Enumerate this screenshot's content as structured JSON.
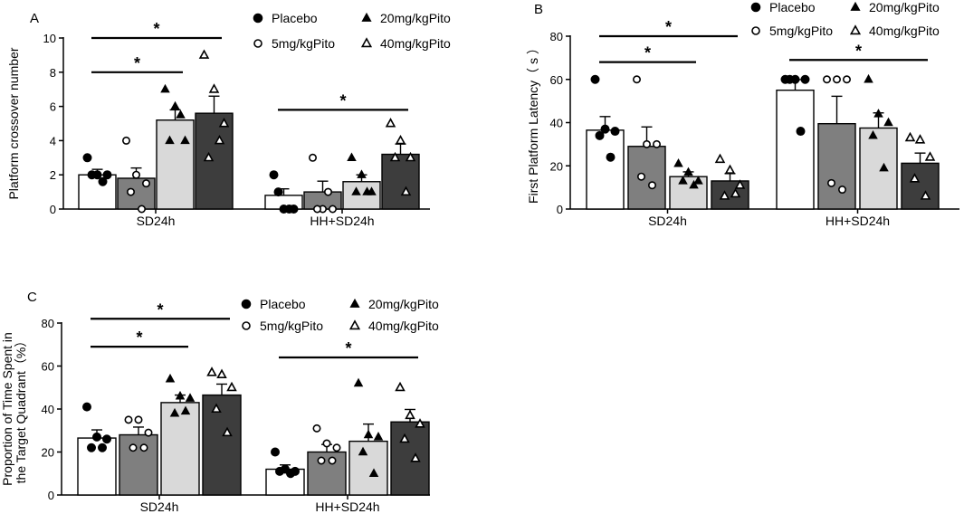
{
  "legend": [
    {
      "label": "Placebo",
      "marker": "filled-circle-icon",
      "fill": "#ffffff"
    },
    {
      "label": "5mg/kgPito",
      "marker": "open-circle-icon",
      "fill": "#7f7f7f"
    },
    {
      "label": "20mg/kgPito",
      "marker": "filled-triangle-icon",
      "fill": "#d9d9d9"
    },
    {
      "label": "40mg/kgPito",
      "marker": "open-triangle-icon",
      "fill": "#3d3d3d"
    }
  ],
  "chart_data": [
    {
      "panel": "A",
      "type": "bar",
      "ylabel": "Platform crossover number",
      "ylim": [
        0,
        10
      ],
      "yticks": [
        0,
        2,
        4,
        6,
        8,
        10
      ],
      "groups": [
        "SD24h",
        "HH+SD24h"
      ],
      "series": [
        {
          "name": "Placebo",
          "values": [
            2.0,
            0.8
          ],
          "sem": [
            0.32,
            0.38
          ],
          "points": [
            [
              3,
              2,
              2,
              2,
              1.6
            ],
            [
              2,
              0,
              0,
              1,
              0
            ]
          ]
        },
        {
          "name": "5mg/kgPito",
          "values": [
            1.8,
            1.0
          ],
          "sem": [
            0.6,
            0.63
          ],
          "points": [
            [
              4,
              2,
              1.5,
              1,
              0
            ],
            [
              3,
              0,
              0,
              0,
              1
            ]
          ]
        },
        {
          "name": "20mg/kgPito",
          "values": [
            5.2,
            1.6
          ],
          "sem": [
            0.6,
            0.4
          ],
          "points": [
            [
              7,
              6,
              4,
              4,
              5.5
            ],
            [
              3,
              2,
              1,
              1,
              1
            ]
          ]
        },
        {
          "name": "40mg/kgPito",
          "values": [
            5.6,
            3.2
          ],
          "sem": [
            1.0,
            0.6
          ],
          "points": [
            [
              9,
              7,
              5,
              3,
              4
            ],
            [
              5,
              4,
              3,
              3,
              1
            ]
          ]
        }
      ],
      "significance": [
        {
          "group": 0,
          "from": 0,
          "to": 2,
          "y": 8.0,
          "label": "*"
        },
        {
          "group": 0,
          "from": 0,
          "to": 3,
          "y": 10.0,
          "label": "*"
        },
        {
          "group": 1,
          "from": 0,
          "to": 3,
          "y": 5.8,
          "label": "*"
        }
      ]
    },
    {
      "panel": "B",
      "type": "bar",
      "ylabel": "First Platform Latency（ s ）",
      "ylim": [
        0,
        80
      ],
      "yticks": [
        0,
        20,
        40,
        60,
        80
      ],
      "groups": [
        "SD24h",
        "HH+SD24h"
      ],
      "series": [
        {
          "name": "Placebo",
          "values": [
            36.5,
            55.0
          ],
          "sem": [
            6.3,
            4.9
          ],
          "points": [
            [
              60,
              37,
              36,
              34,
              24
            ],
            [
              60,
              60,
              60,
              60,
              36
            ]
          ]
        },
        {
          "name": "5mg/kgPito",
          "values": [
            29.0,
            39.5
          ],
          "sem": [
            9.0,
            12.7
          ],
          "points": [
            [
              60,
              30,
              30,
              15,
              11
            ],
            [
              60,
              60,
              60,
              12,
              9
            ]
          ]
        },
        {
          "name": "20mg/kgPito",
          "values": [
            15.0,
            37.5
          ],
          "sem": [
            2.2,
            7.0
          ],
          "points": [
            [
              21,
              17,
              13,
              13,
              11
            ],
            [
              60,
              44,
              40,
              34,
              19
            ]
          ]
        },
        {
          "name": "40mg/kgPito",
          "values": [
            13.0,
            21.2
          ],
          "sem": [
            3.4,
            4.7
          ],
          "points": [
            [
              23,
              18,
              11,
              6,
              7
            ],
            [
              33,
              32,
              24,
              14,
              6
            ]
          ]
        }
      ],
      "significance": [
        {
          "group": 0,
          "from": 0,
          "to": 2,
          "y": 68,
          "label": "*"
        },
        {
          "group": 0,
          "from": 0,
          "to": 3,
          "y": 80,
          "label": "*"
        },
        {
          "group": 1,
          "from": 0,
          "to": 3,
          "y": 69,
          "label": "*"
        }
      ]
    },
    {
      "panel": "C",
      "type": "bar",
      "ylabel": "Proportion of Time Spent in the Target Quadrant（%）",
      "ylabel_lines": [
        "Proportion of Time Spent in",
        "the Target Quadrant（%）"
      ],
      "ylim": [
        0,
        80
      ],
      "yticks": [
        0,
        20,
        40,
        60,
        80
      ],
      "groups": [
        "SD24h",
        "HH+SD24h"
      ],
      "series": [
        {
          "name": "Placebo",
          "values": [
            26.5,
            12.0
          ],
          "sem": [
            3.8,
            2.0
          ],
          "points": [
            [
              41,
              27,
              26,
              22,
              22
            ],
            [
              20,
              12,
              11,
              11,
              10
            ]
          ]
        },
        {
          "name": "5mg/kgPito",
          "values": [
            28.0,
            20.0
          ],
          "sem": [
            3.6,
            3.5
          ],
          "points": [
            [
              35,
              35,
              29,
              22,
              22
            ],
            [
              31,
              24,
              22,
              16,
              16
            ]
          ]
        },
        {
          "name": "20mg/kgPito",
          "values": [
            43.0,
            25.0
          ],
          "sem": [
            3.5,
            8.0
          ],
          "points": [
            [
              54,
              46,
              45,
              38,
              39
            ],
            [
              52,
              28,
              27,
              20,
              10
            ]
          ]
        },
        {
          "name": "40mg/kgPito",
          "values": [
            46.5,
            34.0
          ],
          "sem": [
            5.1,
            5.8
          ],
          "points": [
            [
              57,
              56,
              50,
              40,
              29
            ],
            [
              50,
              37,
              33,
              26,
              17
            ]
          ]
        }
      ],
      "significance": [
        {
          "group": 0,
          "from": 0,
          "to": 2,
          "y": 69,
          "label": "*"
        },
        {
          "group": 0,
          "from": 0,
          "to": 3,
          "y": 82,
          "label": "*"
        },
        {
          "group": 1,
          "from": 0,
          "to": 3,
          "y": 64,
          "label": "*"
        }
      ]
    }
  ]
}
